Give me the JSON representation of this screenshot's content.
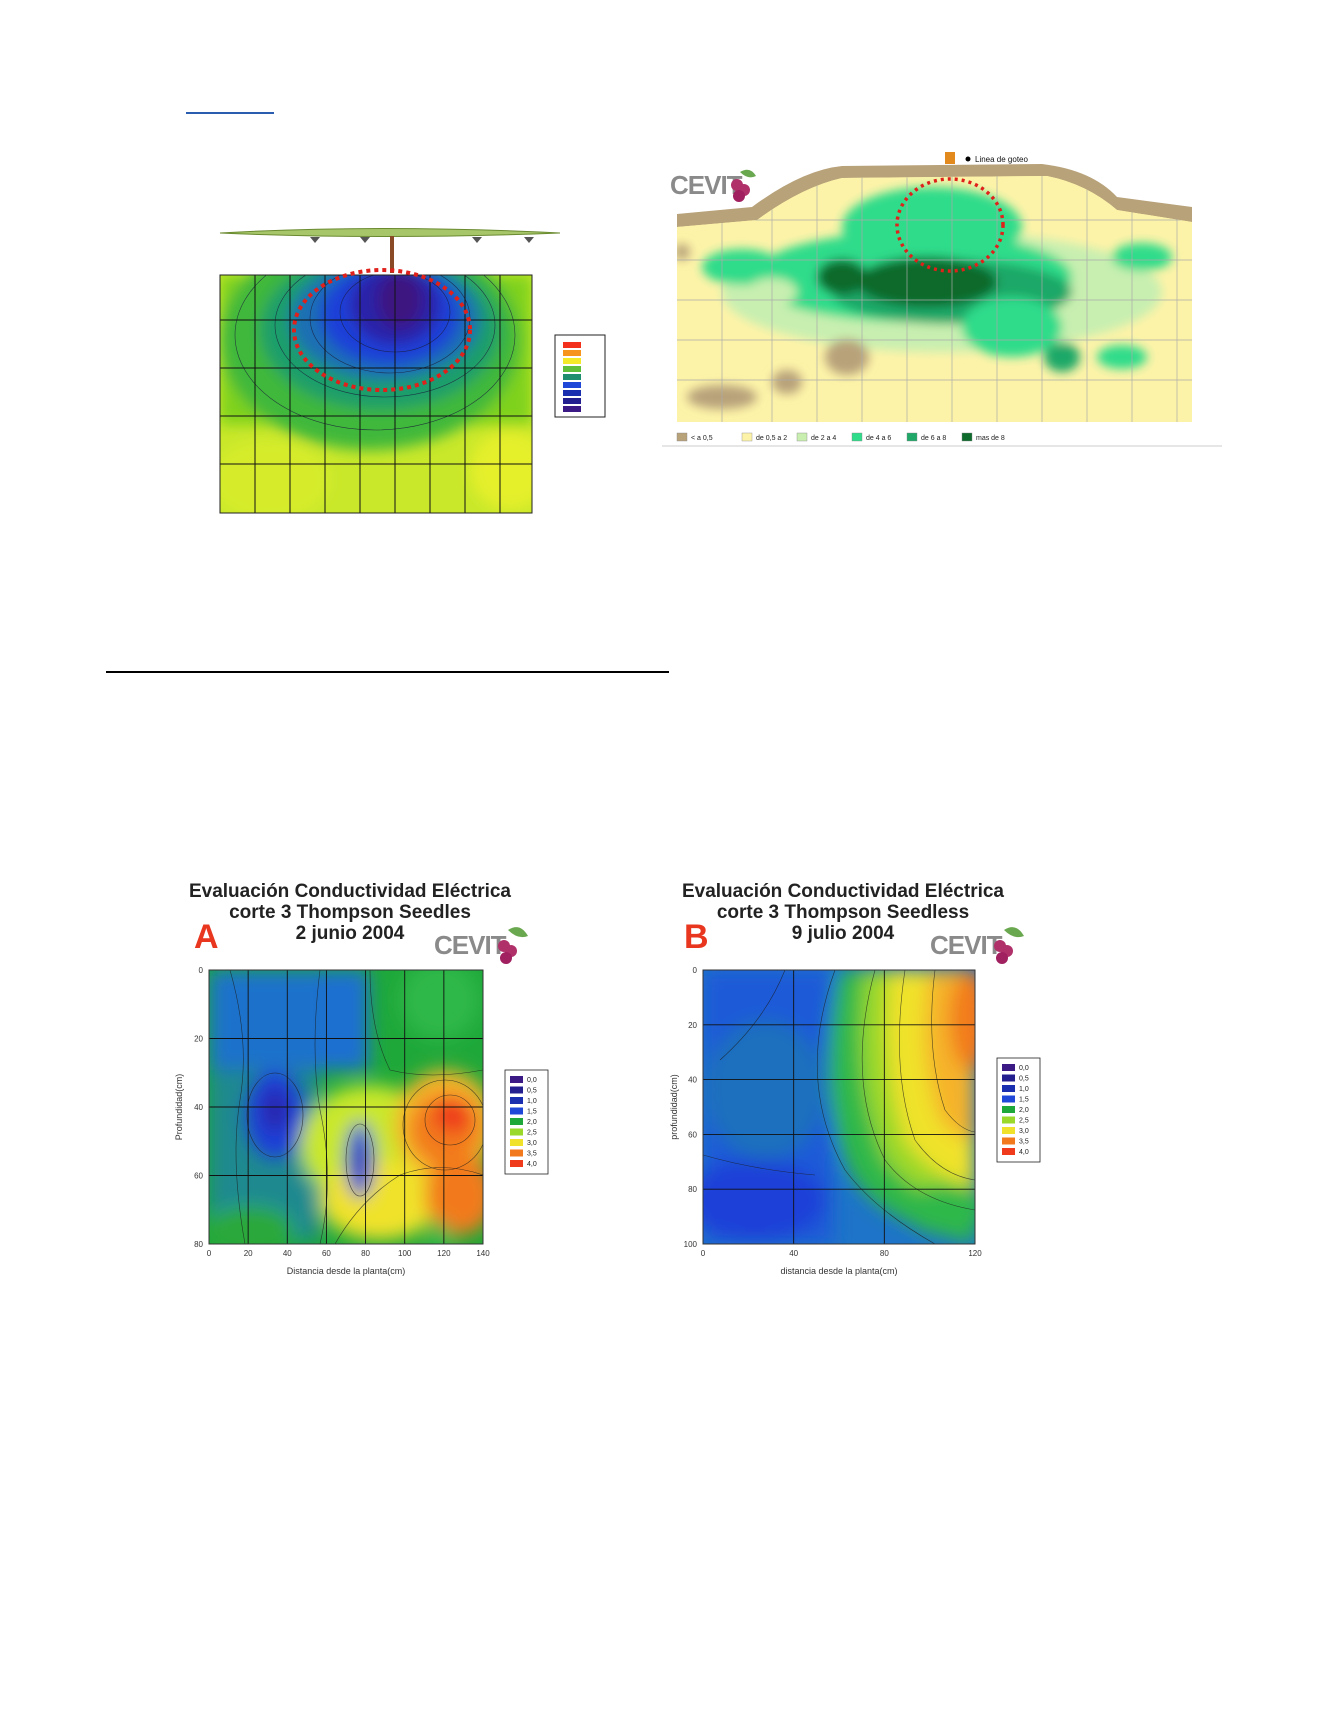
{
  "top_right_map": {
    "drip_label": "Linea de goteo",
    "legend": [
      "< a 0,5",
      "de 0,5 a 2",
      "de 2 a 4",
      "de 4 a 6",
      "de 6 a 8",
      "mas de 8"
    ],
    "legend_colors": [
      "#b8a27a",
      "#fdf3a8",
      "#c8efb0",
      "#2fdc8a",
      "#1fa868",
      "#0d6b2c"
    ],
    "logo": "CEVIT"
  },
  "top_left_map": {
    "legend_colors": [
      "#f2301b",
      "#f7941d",
      "#f5ea2a",
      "#5fbf3a",
      "#1e8e6e",
      "#1f48d8",
      "#1a2fb0",
      "#231f8f",
      "#3b1a86"
    ]
  },
  "chart_a": {
    "letter": "A",
    "title_line1": "Evaluación Conductividad Eléctrica",
    "title_line2": "corte 3 Thompson Seedles",
    "title_line3": "2 junio 2004",
    "logo": "CEVIT",
    "xlabel": "Distancia desde la planta(cm)",
    "ylabel": "Profundidad(cm)",
    "x_ticks": [
      "0",
      "20",
      "40",
      "60",
      "80",
      "100",
      "120",
      "140"
    ],
    "y_ticks": [
      "0",
      "20",
      "40",
      "60",
      "80"
    ],
    "legend": [
      "0,0",
      "0,5",
      "1,0",
      "1,5",
      "2,0",
      "2,5",
      "3,0",
      "3,5",
      "4,0"
    ]
  },
  "chart_b": {
    "letter": "B",
    "title_line1": "Evaluación Conductividad Eléctrica",
    "title_line2": "corte 3 Thompson Seedless",
    "title_line3": "9 julio 2004",
    "logo": "CEVIT",
    "xlabel": "distancia desde la planta(cm)",
    "ylabel": "profundidad(cm)",
    "x_ticks": [
      "0",
      "40",
      "80",
      "120"
    ],
    "y_ticks": [
      "0",
      "20",
      "40",
      "60",
      "80",
      "100"
    ],
    "legend": [
      "0,0",
      "0,5",
      "1,0",
      "1,5",
      "2,0",
      "2,5",
      "3,0",
      "3,5",
      "4,0"
    ]
  },
  "chart_data": [
    {
      "type": "heatmap",
      "title": "Evaluación Conductividad Eléctrica corte 3 Thompson Seedles 2 junio 2004",
      "xlabel": "Distancia desde la planta(cm)",
      "ylabel": "Profundidad(cm)",
      "x": [
        0,
        20,
        40,
        60,
        80,
        100,
        120,
        140
      ],
      "y": [
        0,
        20,
        40,
        60,
        80
      ],
      "xlim": [
        0,
        140
      ],
      "ylim": [
        0,
        80
      ],
      "legend": [
        "0,0",
        "0,5",
        "1,0",
        "1,5",
        "2,0",
        "2,5",
        "3,0",
        "3,5",
        "4,0"
      ]
    },
    {
      "type": "heatmap",
      "title": "Evaluación Conductividad Eléctrica corte 3 Thompson Seedless 9 julio 2004",
      "xlabel": "distancia desde la planta(cm)",
      "ylabel": "profundidad(cm)",
      "x": [
        0,
        40,
        80,
        120
      ],
      "y": [
        0,
        20,
        40,
        60,
        80,
        100
      ],
      "xlim": [
        0,
        120
      ],
      "ylim": [
        0,
        100
      ],
      "legend": [
        "0,0",
        "0,5",
        "1,0",
        "1,5",
        "2,0",
        "2,5",
        "3,0",
        "3,5",
        "4,0"
      ]
    }
  ]
}
